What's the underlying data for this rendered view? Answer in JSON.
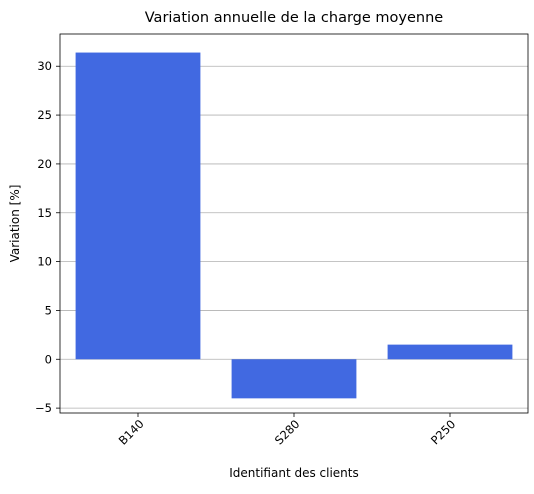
{
  "chart_data": {
    "type": "bar",
    "title": "Variation annuelle de la charge moyenne",
    "xlabel": "Identifiant des clients",
    "ylabel": "Variation [%]",
    "categories": [
      "B140",
      "S280",
      "P250"
    ],
    "values": [
      31.4,
      -4.0,
      1.5
    ],
    "ylim": [
      -5.5,
      33.3
    ],
    "yticks": [
      -5,
      0,
      5,
      10,
      15,
      20,
      25,
      30
    ],
    "ytick_labels": [
      "−5",
      "0",
      "5",
      "10",
      "15",
      "20",
      "25",
      "30"
    ],
    "grid": "horizontal",
    "legend": "none",
    "colors": {
      "bar": "#4169e1",
      "grid": "#b0b0b0",
      "axis": "#000000"
    }
  }
}
